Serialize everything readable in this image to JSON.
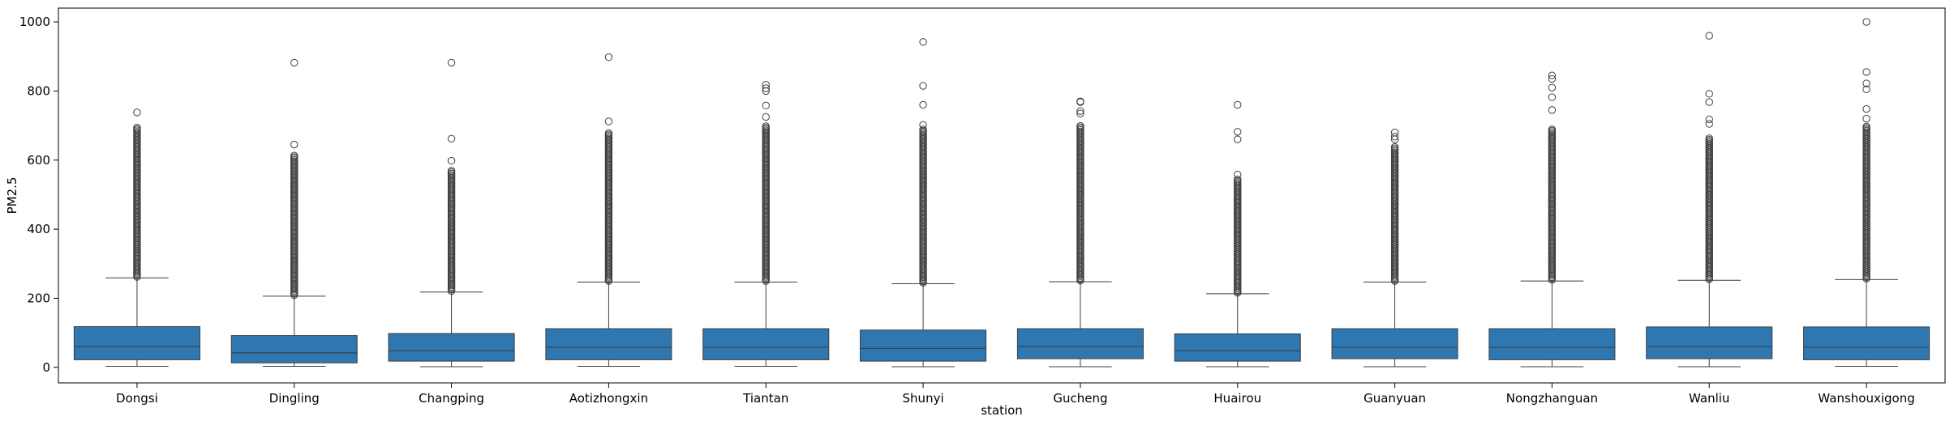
{
  "chart_data": {
    "type": "box",
    "xlabel": "station",
    "ylabel": "PM2.5",
    "ylim": [
      -45,
      1040
    ],
    "yticks": [
      0,
      200,
      400,
      600,
      800,
      1000
    ],
    "grid": false,
    "legend": "none",
    "box_color": "#2e77b0",
    "categories": [
      "Dongsi",
      "Dingling",
      "Changping",
      "Aotizhongxin",
      "Tiantan",
      "Shunyi",
      "Gucheng",
      "Huairou",
      "Guanyuan",
      "Nongzhanguan",
      "Wanliu",
      "Wanshouxigong"
    ],
    "boxes": [
      {
        "whisker_low": 3,
        "q1": 22,
        "median": 60,
        "q3": 118,
        "whisker_high": 259,
        "outlier_dense_max": 695,
        "outliers_sparse": [
          738
        ]
      },
      {
        "whisker_low": 3,
        "q1": 13,
        "median": 42,
        "q3": 92,
        "whisker_high": 206,
        "outlier_dense_max": 615,
        "outliers_sparse": [
          645,
          882
        ]
      },
      {
        "whisker_low": 2,
        "q1": 18,
        "median": 48,
        "q3": 98,
        "whisker_high": 218,
        "outlier_dense_max": 570,
        "outliers_sparse": [
          598,
          662,
          882
        ]
      },
      {
        "whisker_low": 3,
        "q1": 22,
        "median": 58,
        "q3": 112,
        "whisker_high": 247,
        "outlier_dense_max": 680,
        "outliers_sparse": [
          712,
          898
        ]
      },
      {
        "whisker_low": 3,
        "q1": 22,
        "median": 58,
        "q3": 112,
        "whisker_high": 247,
        "outlier_dense_max": 700,
        "outliers_sparse": [
          725,
          758,
          800,
          808,
          818
        ]
      },
      {
        "whisker_low": 2,
        "q1": 18,
        "median": 55,
        "q3": 108,
        "whisker_high": 242,
        "outlier_dense_max": 690,
        "outliers_sparse": [
          702,
          760,
          815,
          942
        ]
      },
      {
        "whisker_low": 2,
        "q1": 25,
        "median": 60,
        "q3": 112,
        "whisker_high": 248,
        "outlier_dense_max": 700,
        "outliers_sparse": [
          735,
          742,
          768,
          770
        ]
      },
      {
        "whisker_low": 2,
        "q1": 18,
        "median": 48,
        "q3": 97,
        "whisker_high": 213,
        "outlier_dense_max": 545,
        "outliers_sparse": [
          558,
          660,
          682,
          760
        ]
      },
      {
        "whisker_low": 2,
        "q1": 25,
        "median": 58,
        "q3": 112,
        "whisker_high": 247,
        "outlier_dense_max": 640,
        "outliers_sparse": [
          660,
          668,
          680
        ]
      },
      {
        "whisker_low": 2,
        "q1": 22,
        "median": 58,
        "q3": 112,
        "whisker_high": 250,
        "outlier_dense_max": 690,
        "outliers_sparse": [
          745,
          782,
          810,
          835,
          845
        ]
      },
      {
        "whisker_low": 2,
        "q1": 25,
        "median": 60,
        "q3": 117,
        "whisker_high": 252,
        "outlier_dense_max": 665,
        "outliers_sparse": [
          705,
          718,
          768,
          792,
          960
        ]
      },
      {
        "whisker_low": 3,
        "q1": 22,
        "median": 58,
        "q3": 117,
        "whisker_high": 254,
        "outlier_dense_max": 700,
        "outliers_sparse": [
          720,
          748,
          805,
          822,
          855,
          1000
        ]
      }
    ]
  }
}
